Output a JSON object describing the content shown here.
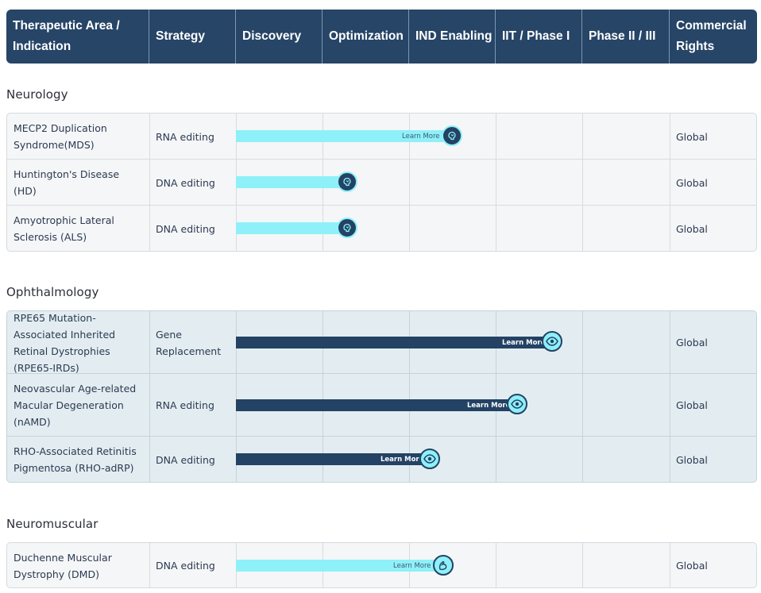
{
  "header": {
    "therapeutic_area": "Therapeutic Area / Indication",
    "strategy": "Strategy",
    "discovery": "Discovery",
    "optimization": "Optimization",
    "ind_enabling": "IND Enabling",
    "iit_phase1": "IIT / Phase I",
    "phase2_3": "Phase II / III",
    "commercial_rights": "Commercial Rights"
  },
  "colors": {
    "header_bg": "#264567",
    "bar_cyan": "#8ef0f9",
    "bar_navy": "#234264",
    "tinted_table_bg": "#e3edf1",
    "light_table_bg": "#f5f6f7"
  },
  "sections": [
    {
      "title": "Neurology",
      "rows": [
        {
          "indication": "MECP2 Duplication Syndrome(MDS)",
          "strategy": "RNA editing",
          "rights": "Global",
          "progress_label": "Learn More",
          "icon": "brain-icon"
        },
        {
          "indication": "Huntington's Disease (HD)",
          "strategy": "DNA editing",
          "rights": "Global",
          "progress_label": "",
          "icon": "brain-icon"
        },
        {
          "indication": "Amyotrophic Lateral Sclerosis (ALS)",
          "strategy": "DNA editing",
          "rights": "Global",
          "progress_label": "",
          "icon": "brain-icon"
        }
      ]
    },
    {
      "title": "Ophthalmology",
      "rows": [
        {
          "indication": "RPE65 Mutation-Associated Inherited Retinal Dystrophies (RPE65-IRDs)",
          "strategy": "Gene Replacement",
          "rights": "Global",
          "progress_label": "Learn More",
          "icon": "eye-icon"
        },
        {
          "indication": "Neovascular Age-related Macular Degeneration (nAMD)",
          "strategy": "RNA editing",
          "rights": "Global",
          "progress_label": "Learn More",
          "icon": "eye-icon"
        },
        {
          "indication": "RHO-Associated Retinitis Pigmentosa (RHO-adRP)",
          "strategy": "DNA editing",
          "rights": "Global",
          "progress_label": "Learn More",
          "icon": "eye-icon"
        }
      ]
    },
    {
      "title": "Neuromuscular",
      "rows": [
        {
          "indication": "Duchenne Muscular Dystrophy (DMD)",
          "strategy": "DNA editing",
          "rights": "Global",
          "progress_label": "Learn More",
          "icon": "muscle-arm-icon"
        }
      ]
    }
  ]
}
